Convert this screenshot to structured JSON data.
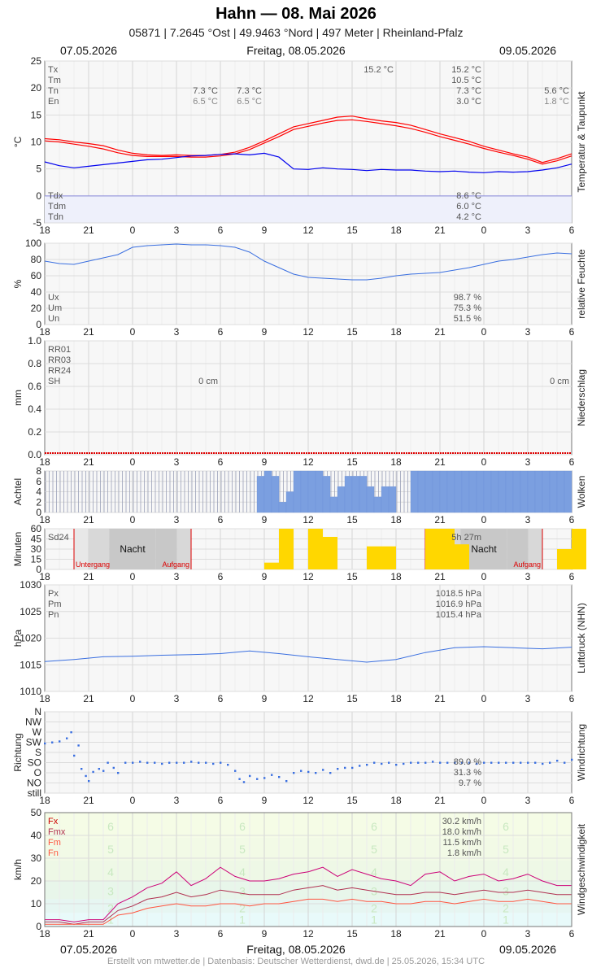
{
  "title": "Hahn  —  08. Mai 2026",
  "subtitle": "05871  |  7.2645 °Ost  |  49.9463 °Nord  |  497 Meter  |  Rheinland-Pfalz",
  "dates": {
    "left": "07.05.2026",
    "center": "Freitag, 08.05.2026",
    "right": "09.05.2026"
  },
  "footer": "Erstellt von mtwetter.de | Datenbasis: Deutscher Wetterdienst, dwd.de | 25.05.2026, 15:34 UTC",
  "colors": {
    "temp": "#ff0000",
    "dew": "#0000ee",
    "blue": "#3a6fe0",
    "sun": "#ffd700",
    "gust": "#cc0077",
    "wind": "#b03050",
    "windmean": "#ff5540",
    "grid": "#dddddd",
    "plotbg": "#f7f7f7"
  },
  "x_hour_labels": [
    "18",
    "21",
    "0",
    "3",
    "6",
    "9",
    "12",
    "15",
    "18",
    "21",
    "0",
    "3",
    "6"
  ],
  "chart_data": [
    {
      "id": "temperature",
      "type": "line",
      "ylabel": "°C",
      "side_label": "Temperatur & Taupunkt",
      "ylim": [
        -5,
        25
      ],
      "yticks": [
        -5,
        0,
        5,
        10,
        15,
        20,
        25
      ],
      "series": [
        {
          "name": "Tmax",
          "x": [
            0,
            1,
            2,
            3,
            4,
            5,
            6,
            7,
            8,
            9,
            10,
            11,
            12,
            13,
            14,
            15,
            16,
            17,
            18,
            19,
            20,
            21,
            22,
            23,
            24,
            25,
            26,
            27,
            28,
            29,
            30,
            31,
            32,
            33,
            34,
            35,
            36
          ],
          "values": [
            10.6,
            10.4,
            10.0,
            9.7,
            9.3,
            8.5,
            7.9,
            7.6,
            7.5,
            7.6,
            7.5,
            7.5,
            7.7,
            8.1,
            9.0,
            10.2,
            11.5,
            12.8,
            13.4,
            14.0,
            14.6,
            14.8,
            14.3,
            13.9,
            13.6,
            13.1,
            12.3,
            11.5,
            10.8,
            10.1,
            9.2,
            8.5,
            7.8,
            7.2,
            6.2,
            6.9,
            7.8
          ]
        },
        {
          "name": "Tmin",
          "x": [
            0,
            1,
            2,
            3,
            4,
            5,
            6,
            7,
            8,
            9,
            10,
            11,
            12,
            13,
            14,
            15,
            16,
            17,
            18,
            19,
            20,
            21,
            22,
            23,
            24,
            25,
            26,
            27,
            28,
            29,
            30,
            31,
            32,
            33,
            34,
            35,
            36
          ],
          "values": [
            10.2,
            10.0,
            9.6,
            9.2,
            8.7,
            8.0,
            7.5,
            7.3,
            7.3,
            7.3,
            7.2,
            7.2,
            7.4,
            7.8,
            8.6,
            9.8,
            11.0,
            12.3,
            12.9,
            13.5,
            14.0,
            14.1,
            13.8,
            13.4,
            13.0,
            12.5,
            11.8,
            11.0,
            10.3,
            9.6,
            8.8,
            8.1,
            7.5,
            6.8,
            5.9,
            6.5,
            7.4
          ]
        },
        {
          "name": "Tdew",
          "x": [
            0,
            1,
            2,
            3,
            4,
            5,
            6,
            7,
            8,
            9,
            10,
            11,
            12,
            13,
            14,
            15,
            16,
            17,
            18,
            19,
            20,
            21,
            22,
            23,
            24,
            25,
            26,
            27,
            28,
            29,
            30,
            31,
            32,
            33,
            34,
            35,
            36
          ],
          "values": [
            6.3,
            5.6,
            5.2,
            5.5,
            5.8,
            6.1,
            6.4,
            6.7,
            6.8,
            7.1,
            7.4,
            7.5,
            7.7,
            7.8,
            7.6,
            7.9,
            7.2,
            5.0,
            4.9,
            5.2,
            5.0,
            4.9,
            4.7,
            4.9,
            4.8,
            4.8,
            4.6,
            4.5,
            4.6,
            4.4,
            4.3,
            4.5,
            4.4,
            4.5,
            4.8,
            5.2,
            5.9
          ]
        }
      ],
      "labels_top": [
        "Tx",
        "Tm",
        "Tn",
        "En"
      ],
      "labels_bottom": [
        "Tdx",
        "Tdm",
        "Tdn"
      ],
      "values_main": [
        "15.2 °C",
        "10.5 °C",
        "7.3 °C",
        "3.0 °C"
      ],
      "values_dew": [
        "8.6 °C",
        "6.0 °C",
        "4.2 °C"
      ],
      "tx_marker": "15.2 °C",
      "tn_left1": "7.3 °C",
      "en_left1": "6.5 °C",
      "tn_left2": "7.3 °C",
      "en_left2": "6.5 °C",
      "tn_right": "5.6 °C",
      "en_right": "1.8 °C"
    },
    {
      "id": "humidity",
      "type": "line",
      "ylabel": "%",
      "side_label": "relative Feuchte",
      "ylim": [
        0,
        100
      ],
      "yticks": [
        0,
        20,
        40,
        60,
        80,
        100
      ],
      "series": [
        {
          "name": "rF",
          "x": [
            0,
            1,
            2,
            3,
            4,
            5,
            6,
            7,
            8,
            9,
            10,
            11,
            12,
            13,
            14,
            15,
            16,
            17,
            18,
            19,
            20,
            21,
            22,
            23,
            24,
            25,
            26,
            27,
            28,
            29,
            30,
            31,
            32,
            33,
            34,
            35,
            36
          ],
          "values": [
            78,
            75,
            74,
            78,
            82,
            86,
            95,
            97,
            98,
            99,
            98,
            98,
            97,
            95,
            89,
            78,
            70,
            62,
            58,
            57,
            56,
            55,
            55,
            57,
            60,
            62,
            63,
            64,
            67,
            70,
            74,
            78,
            80,
            83,
            86,
            88,
            87
          ]
        }
      ],
      "labels": [
        "Ux",
        "Um",
        "Un"
      ],
      "values": [
        "98.7 %",
        "75.3 %",
        "51.5 %"
      ]
    },
    {
      "id": "precipitation",
      "type": "bar",
      "ylabel": "mm",
      "side_label": "Niederschlag",
      "ylim": [
        0,
        1.0
      ],
      "yticks": [
        "0.0",
        "0.2",
        "0.4",
        "0.6",
        "0.8",
        "1.0"
      ],
      "labels": [
        "RR01",
        "RR03",
        "RR24",
        "SH"
      ],
      "snow_day1": "0 cm",
      "snow_day2": "0 cm"
    },
    {
      "id": "clouds",
      "type": "bar",
      "ylabel": "Achtel",
      "side_label": "Wolken",
      "ylim": [
        0,
        8
      ],
      "yticks": [
        0,
        2,
        4,
        6,
        8
      ],
      "x": [
        0,
        0.5,
        1,
        1.5,
        2,
        2.5,
        3,
        3.5,
        4,
        4.5,
        5,
        5.5,
        6,
        6.5,
        7,
        7.5,
        8,
        8.5,
        9,
        9.5,
        10,
        10.5,
        11,
        11.5,
        12,
        12.5,
        13,
        13.5,
        14,
        14.5,
        15,
        15.5,
        16,
        16.5,
        17,
        17.5,
        18,
        18.5,
        19,
        19.5,
        20,
        20.5,
        21,
        21.5,
        22,
        22.5,
        23,
        23.5,
        24,
        24.5,
        25,
        25.5,
        26,
        26.5,
        27,
        27.5,
        28,
        28.5,
        29,
        29.5,
        30,
        30.5,
        31,
        31.5,
        32,
        32.5,
        33,
        33.5,
        34,
        34.5,
        35,
        35.5
      ],
      "values": [
        8,
        8,
        8,
        8,
        8,
        8,
        8,
        8,
        8,
        8,
        8,
        8,
        8,
        8,
        8,
        8,
        8,
        8,
        8,
        8,
        8,
        8,
        8,
        8,
        8,
        8,
        8,
        8,
        8,
        7,
        8,
        7,
        2,
        4,
        8,
        8,
        8,
        8,
        7,
        3,
        5,
        7,
        7,
        7,
        5,
        3,
        5,
        5,
        0,
        0,
        8,
        8,
        8,
        8,
        8,
        8,
        8,
        8,
        8,
        8,
        8,
        8,
        8,
        8,
        8,
        8,
        8,
        8,
        8,
        8,
        8,
        8
      ],
      "observed": [
        0,
        0,
        0,
        0,
        0,
        0,
        0,
        0,
        0,
        0,
        0,
        0,
        0,
        0,
        0,
        0,
        0,
        0,
        0,
        0,
        0,
        0,
        0,
        0,
        0,
        0,
        0,
        0,
        0,
        1,
        1,
        1,
        1,
        1,
        1,
        1,
        1,
        1,
        1,
        1,
        1,
        1,
        1,
        1,
        1,
        1,
        1,
        1,
        1,
        1,
        1,
        1,
        1,
        1,
        1,
        1,
        1,
        1,
        1,
        1,
        1,
        1,
        1,
        1,
        1,
        1,
        1,
        1,
        1,
        1,
        1,
        1
      ]
    },
    {
      "id": "sunshine",
      "type": "bar",
      "ylabel": "Minuten",
      "side_label": "Sonne",
      "ylim": [
        0,
        60
      ],
      "yticks": [
        0,
        15,
        30,
        45,
        60
      ],
      "x": [
        15,
        16,
        18,
        19,
        20,
        22,
        23,
        24,
        26,
        27,
        28,
        35,
        36
      ],
      "values": [
        10,
        60,
        60,
        48,
        0,
        34,
        34,
        0,
        60,
        60,
        37,
        30,
        60
      ],
      "label": "Sd24",
      "total": "5h 27m",
      "night": "Nacht",
      "sunset": "Untergang",
      "sunrise": "Aufgang"
    },
    {
      "id": "pressure",
      "type": "line",
      "ylabel": "hPa",
      "side_label": "Luftdruck (NHN)",
      "ylim": [
        1010,
        1030
      ],
      "yticks": [
        1010,
        1015,
        1020,
        1025,
        1030
      ],
      "series": [
        {
          "name": "p",
          "x": [
            0,
            2,
            4,
            6,
            8,
            10,
            12,
            14,
            16,
            18,
            20,
            22,
            24,
            26,
            28,
            30,
            32,
            34,
            36
          ],
          "values": [
            1015.6,
            1016.0,
            1016.5,
            1016.6,
            1016.8,
            1016.9,
            1017.1,
            1017.6,
            1017.1,
            1016.5,
            1016.0,
            1015.5,
            1016.0,
            1017.3,
            1018.2,
            1018.4,
            1018.2,
            1018.0,
            1018.3
          ]
        }
      ],
      "labels": [
        "Px",
        "Pm",
        "Pn"
      ],
      "values": [
        "1018.5 hPa",
        "1016.9 hPa",
        "1015.4 hPa"
      ]
    },
    {
      "id": "winddirection",
      "type": "scatter",
      "ylabel": "Richtung",
      "side_label": "Windrichtung",
      "yticks": [
        "N",
        "NW",
        "W",
        "SW",
        "S",
        "SO",
        "O",
        "NO",
        "still"
      ],
      "x": [
        0,
        0.5,
        1,
        1.5,
        1.8,
        2,
        2.3,
        2.5,
        2.8,
        3,
        3.3,
        3.7,
        4,
        4.3,
        4.7,
        5,
        5.5,
        6,
        6.5,
        7,
        7.5,
        8,
        8.5,
        9,
        9.5,
        10,
        10.5,
        11,
        11.5,
        12,
        12.5,
        13,
        13.3,
        13.6,
        14,
        14.5,
        15,
        15.5,
        16,
        16.5,
        17,
        17.5,
        18,
        18.5,
        19,
        19.5,
        20,
        20.5,
        21,
        21.5,
        22,
        22.5,
        23,
        23.5,
        24,
        24.5,
        25,
        25.5,
        26,
        26.5,
        27,
        27.5,
        28,
        28.5,
        29,
        29.5,
        30,
        30.5,
        31,
        31.5,
        32,
        32.5,
        33,
        33.5,
        34,
        34.5,
        35,
        35.5,
        36
      ],
      "values": [
        3.1,
        3.0,
        2.9,
        2.6,
        2.0,
        4.3,
        3.3,
        5.6,
        6.3,
        6.8,
        5.9,
        5.6,
        5.8,
        5.0,
        5.5,
        6.0,
        5.0,
        5.0,
        4.9,
        5.0,
        5.0,
        5.1,
        5.0,
        5.0,
        5.0,
        4.9,
        5.0,
        5.0,
        5.1,
        5.0,
        5.2,
        5.8,
        6.6,
        6.9,
        6.3,
        6.6,
        6.5,
        6.2,
        6.4,
        6.8,
        6.0,
        5.8,
        5.9,
        6.0,
        5.7,
        6.0,
        5.6,
        5.5,
        5.5,
        5.3,
        5.2,
        5.0,
        5.1,
        5.0,
        5.2,
        5.1,
        5.0,
        5.0,
        5.0,
        4.9,
        5.0,
        5.0,
        5.0,
        5.0,
        5.0,
        5.1,
        5.0,
        5.0,
        5.0,
        5.0,
        5.0,
        5.0,
        5.0,
        5.0,
        5.1,
        5.0,
        4.8,
        5.0,
        4.7
      ],
      "labels_values": [
        "89.0 %",
        "31.3 %",
        "9.7 %"
      ]
    },
    {
      "id": "windspeed",
      "type": "line",
      "ylabel": "km/h",
      "side_label": "Windgeschwindigkeit",
      "ylim": [
        0,
        50
      ],
      "yticks": [
        0,
        10,
        20,
        30,
        40,
        50
      ],
      "bft": [
        "1",
        "2",
        "3",
        "4",
        "5",
        "6"
      ],
      "series": [
        {
          "name": "Fx",
          "x": [
            0,
            1,
            2,
            3,
            4,
            5,
            6,
            7,
            8,
            9,
            10,
            11,
            12,
            13,
            14,
            15,
            16,
            17,
            18,
            19,
            20,
            21,
            22,
            23,
            24,
            25,
            26,
            27,
            28,
            29,
            30,
            31,
            32,
            33,
            34,
            35,
            36
          ],
          "values": [
            3,
            3,
            2,
            3,
            3,
            10,
            13,
            17,
            19,
            24,
            18,
            21,
            26,
            22,
            20,
            20,
            21,
            23,
            24,
            26,
            22,
            25,
            23,
            21,
            20,
            18,
            23,
            24,
            20,
            22,
            23,
            20,
            21,
            23,
            20,
            18,
            18
          ]
        },
        {
          "name": "Fmx",
          "x": [
            0,
            1,
            2,
            3,
            4,
            5,
            6,
            7,
            8,
            9,
            10,
            11,
            12,
            13,
            14,
            15,
            16,
            17,
            18,
            19,
            20,
            21,
            22,
            23,
            24,
            25,
            26,
            27,
            28,
            29,
            30,
            31,
            32,
            33,
            34,
            35,
            36
          ],
          "values": [
            2,
            2,
            1,
            2,
            2,
            7,
            9,
            12,
            13,
            15,
            13,
            14,
            16,
            15,
            14,
            14,
            14,
            16,
            17,
            18,
            16,
            17,
            16,
            15,
            14,
            14,
            15,
            15,
            14,
            15,
            16,
            15,
            15,
            16,
            15,
            14,
            14
          ]
        },
        {
          "name": "Fm",
          "x": [
            0,
            1,
            2,
            3,
            4,
            5,
            6,
            7,
            8,
            9,
            10,
            11,
            12,
            13,
            14,
            15,
            16,
            17,
            18,
            19,
            20,
            21,
            22,
            23,
            24,
            25,
            26,
            27,
            28,
            29,
            30,
            31,
            32,
            33,
            34,
            35,
            36
          ],
          "values": [
            1,
            1,
            1,
            1,
            1,
            5,
            6,
            8,
            9,
            10,
            9,
            9,
            10,
            10,
            9,
            10,
            10,
            11,
            12,
            12,
            11,
            12,
            11,
            11,
            10,
            10,
            11,
            11,
            10,
            11,
            12,
            11,
            11,
            12,
            11,
            10,
            10
          ]
        }
      ],
      "labels": [
        "Fx",
        "Fmx",
        "Fm",
        "Fn"
      ],
      "values": [
        "30.2 km/h",
        "18.0 km/h",
        "11.5 km/h",
        "1.8 km/h"
      ]
    }
  ]
}
